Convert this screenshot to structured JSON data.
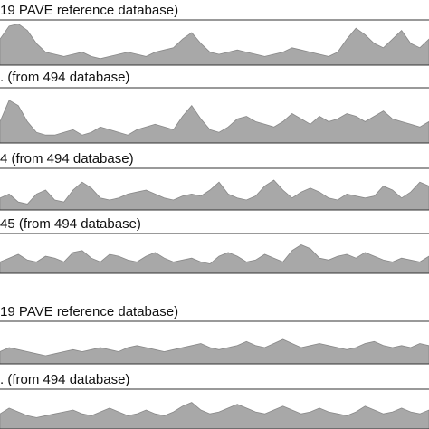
{
  "chart_data": [
    {
      "type": "area",
      "title": "19 PAVE reference database)",
      "color": "#a8a8a8",
      "ylim": [
        0,
        100
      ],
      "values": [
        60,
        90,
        95,
        80,
        50,
        30,
        25,
        20,
        25,
        30,
        20,
        15,
        20,
        25,
        30,
        25,
        20,
        30,
        35,
        40,
        60,
        75,
        50,
        30,
        25,
        30,
        35,
        30,
        25,
        20,
        25,
        30,
        40,
        35,
        30,
        25,
        20,
        30,
        60,
        85,
        70,
        50,
        40,
        60,
        80,
        50,
        40,
        60
      ]
    },
    {
      "type": "area",
      "title": ". (from 494 database)",
      "color": "#a8a8a8",
      "ylim": [
        0,
        100
      ],
      "values": [
        40,
        80,
        70,
        40,
        20,
        15,
        15,
        20,
        25,
        15,
        20,
        30,
        25,
        20,
        15,
        25,
        30,
        35,
        30,
        25,
        50,
        70,
        45,
        25,
        20,
        30,
        45,
        50,
        40,
        35,
        30,
        40,
        55,
        45,
        35,
        50,
        40,
        45,
        55,
        50,
        40,
        50,
        60,
        45,
        40,
        35,
        30,
        40
      ]
    },
    {
      "type": "area",
      "title": "4 (from 494 database)",
      "color": "#a8a8a8",
      "ylim": [
        0,
        100
      ],
      "values": [
        30,
        40,
        20,
        15,
        40,
        50,
        25,
        20,
        50,
        70,
        55,
        30,
        25,
        30,
        40,
        45,
        50,
        40,
        30,
        25,
        35,
        40,
        35,
        50,
        70,
        40,
        30,
        25,
        35,
        60,
        75,
        50,
        30,
        45,
        55,
        45,
        30,
        25,
        40,
        35,
        30,
        35,
        60,
        50,
        30,
        45,
        70,
        60
      ]
    },
    {
      "type": "area",
      "title": "45 (from 494 database)",
      "color": "#a8a8a8",
      "ylim": [
        0,
        100
      ],
      "values": [
        30,
        40,
        50,
        35,
        30,
        45,
        40,
        30,
        55,
        60,
        40,
        30,
        50,
        45,
        35,
        30,
        45,
        55,
        40,
        30,
        35,
        40,
        30,
        25,
        45,
        55,
        45,
        30,
        35,
        50,
        40,
        30,
        60,
        75,
        65,
        40,
        35,
        45,
        50,
        40,
        55,
        45,
        35,
        30,
        40,
        35,
        30,
        45
      ]
    },
    {
      "type": "area",
      "title": "19 PAVE reference database)",
      "color": "#a8a8a8",
      "ylim": [
        0,
        100
      ],
      "values": [
        30,
        40,
        35,
        30,
        25,
        20,
        25,
        30,
        35,
        30,
        35,
        40,
        35,
        30,
        40,
        45,
        40,
        35,
        30,
        35,
        40,
        45,
        50,
        40,
        35,
        40,
        45,
        55,
        45,
        40,
        50,
        60,
        50,
        40,
        45,
        50,
        45,
        40,
        35,
        40,
        50,
        55,
        45,
        40,
        45,
        40,
        50,
        45
      ]
    },
    {
      "type": "area",
      "title": ". (from 494 database)",
      "color": "#a8a8a8",
      "ylim": [
        0,
        100
      ],
      "values": [
        40,
        55,
        45,
        35,
        30,
        35,
        40,
        45,
        50,
        40,
        35,
        45,
        55,
        45,
        35,
        40,
        50,
        40,
        35,
        45,
        60,
        70,
        50,
        40,
        45,
        55,
        65,
        55,
        45,
        40,
        50,
        60,
        50,
        40,
        45,
        55,
        45,
        40,
        35,
        45,
        60,
        50,
        40,
        45,
        55,
        45,
        40,
        50
      ]
    }
  ]
}
